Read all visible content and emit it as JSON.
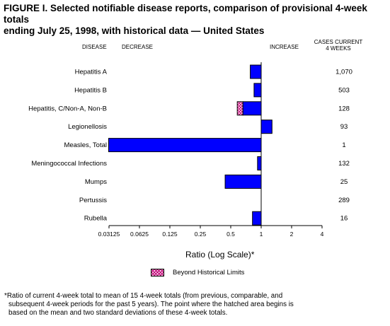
{
  "figure": {
    "title_line1": "FIGURE I. Selected notifiable disease reports, comparison of provisional 4-week totals",
    "title_line2": "ending July 25, 1998, with historical data — United States"
  },
  "headers": {
    "disease": "Disease",
    "decrease": "Decrease",
    "increase": "Increase",
    "cases_line1": "Cases current",
    "cases_line2": "4 weeks"
  },
  "legend": {
    "label": "Beyond Historical Limits",
    "hatch_color": "#b8006e"
  },
  "footnote": {
    "line1": "*Ratio of current 4-week total to mean of  15 4-week totals (from previous, comparable, and",
    "line2": "subsequent 4-week periods for the past 5 years). The point where the hatched area begins is",
    "line3": "based on the mean and two standard deviations of these 4-week totals."
  },
  "chart_data": {
    "type": "bar",
    "orientation": "horizontal",
    "xlabel": "Ratio (Log Scale)*",
    "x_scale": "log2",
    "xlim": [
      0.03125,
      4
    ],
    "xticks": [
      0.03125,
      0.0625,
      0.125,
      0.25,
      0.5,
      1,
      2,
      4
    ],
    "xtick_labels": [
      "0.03125",
      "0.0625",
      "0.125",
      "0.25",
      "0.5",
      "1",
      "2",
      "4"
    ],
    "baseline": 1,
    "bar_color": "#0000ff",
    "categories": [
      "Hepatitis A",
      "Hepatitis B",
      "Hepatitis, C/Non-A, Non-B",
      "Legionellosis",
      "Measles, Total",
      "Meningococcal Infections",
      "Mumps",
      "Pertussis",
      "Rubella"
    ],
    "ratios": [
      0.78,
      0.85,
      0.58,
      1.28,
      0.031,
      0.92,
      0.44,
      1,
      0.82
    ],
    "hatched_start": [
      null,
      null,
      0.66,
      null,
      null,
      null,
      null,
      null,
      null
    ],
    "cases_current_4_weeks": [
      "1,070",
      "503",
      "128",
      "93",
      "1",
      "132",
      "25",
      "289",
      "16"
    ]
  }
}
